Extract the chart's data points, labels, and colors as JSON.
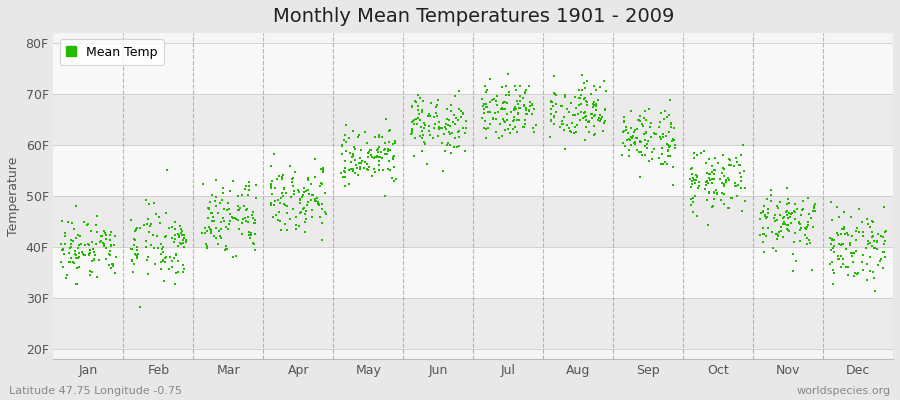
{
  "title": "Monthly Mean Temperatures 1901 - 2009",
  "ylabel": "Temperature",
  "xlabel": "",
  "month_labels": [
    "Jan",
    "Feb",
    "Mar",
    "Apr",
    "May",
    "Jun",
    "Jul",
    "Aug",
    "Sep",
    "Oct",
    "Nov",
    "Dec"
  ],
  "ytick_labels": [
    "20F",
    "30F",
    "40F",
    "50F",
    "60F",
    "70F",
    "80F"
  ],
  "ytick_values": [
    20,
    30,
    40,
    50,
    60,
    70,
    80
  ],
  "ylim": [
    18,
    82
  ],
  "xlim": [
    -0.5,
    11.5
  ],
  "dot_color": "#22bb00",
  "dot_size": 4,
  "fig_bg_color": "#e8e8e8",
  "plot_bg_color": "#f5f5f5",
  "band_color_light": "#f8f8f8",
  "band_color_dark": "#ebebeb",
  "title_fontsize": 14,
  "axis_label_fontsize": 9,
  "tick_fontsize": 9,
  "legend_label": "Mean Temp",
  "footer_left": "Latitude 47.75 Longitude -0.75",
  "footer_right": "worldspecies.org",
  "footer_fontsize": 8,
  "grid_color": "#cccccc",
  "vline_color": "#999999",
  "vline_style": "--",
  "monthly_normals_f": [
    39.5,
    40.5,
    45.5,
    50.0,
    57.0,
    63.5,
    67.0,
    66.5,
    61.0,
    53.0,
    45.0,
    40.5
  ],
  "monthly_std_f": [
    3.5,
    3.8,
    3.5,
    3.2,
    3.2,
    3.0,
    2.8,
    2.8,
    3.0,
    3.2,
    3.2,
    3.5
  ],
  "years": 109,
  "seed": 42
}
